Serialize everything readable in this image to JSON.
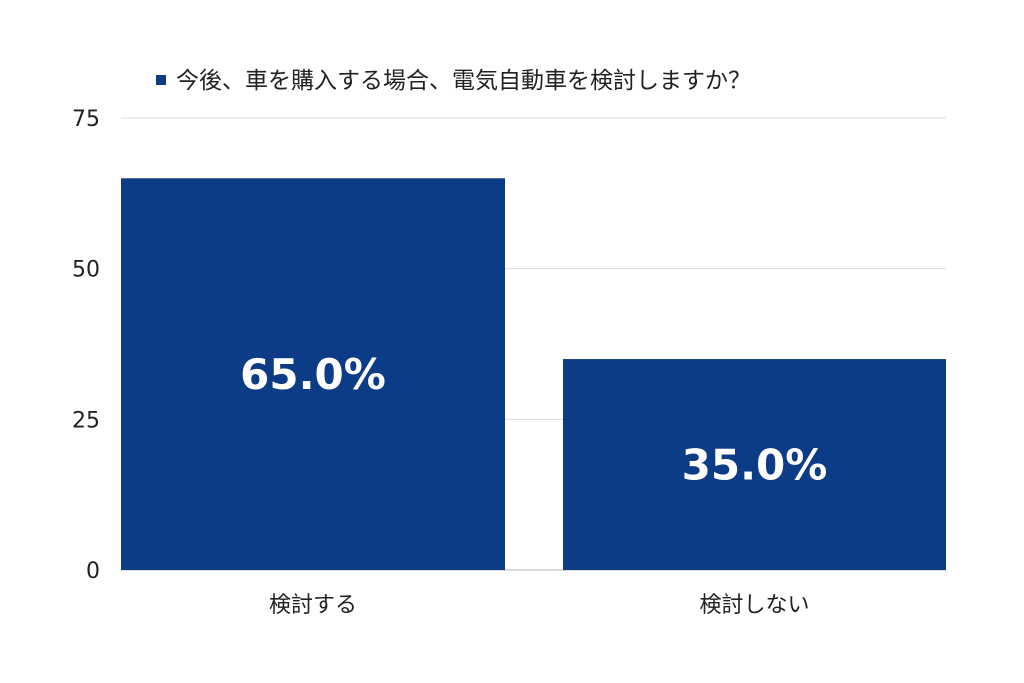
{
  "chart_data": {
    "type": "bar",
    "categories": [
      "検討する",
      "検討しない"
    ],
    "series": [
      {
        "name": "今後、車を購入する場合、電気自動車を検討しますか？",
        "values": [
          65.0,
          35.0
        ]
      }
    ],
    "data_labels": [
      "65.0%",
      "35.0%"
    ],
    "yticks": [
      0,
      25,
      50,
      75
    ],
    "ylim": [
      0,
      75
    ],
    "grid": true,
    "legend_position": "top",
    "colors": {
      "bar": "#0d3c87",
      "grid": "#dddddd"
    }
  }
}
